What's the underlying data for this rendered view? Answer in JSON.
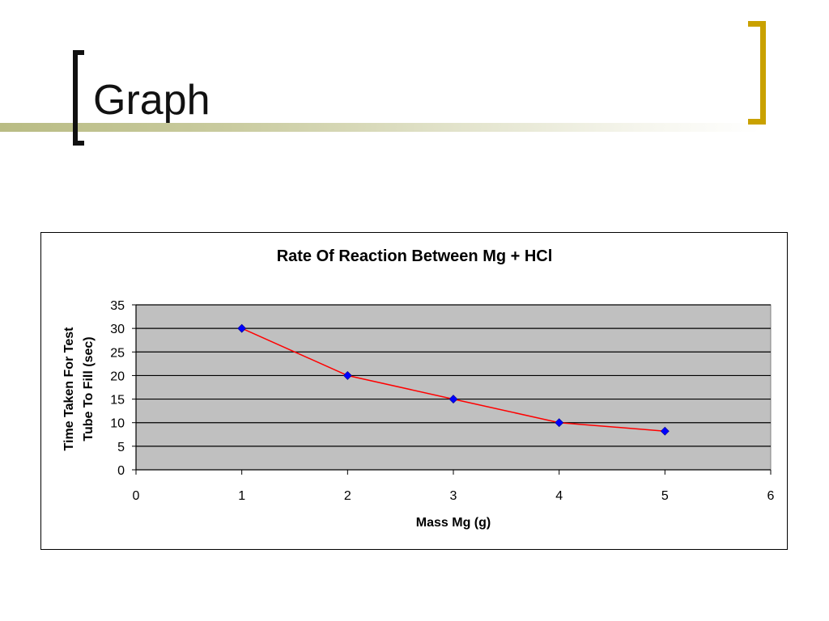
{
  "slide": {
    "title": "Graph",
    "accent_color": "#c9a100",
    "band_color": "#b9bc84"
  },
  "chart_data": {
    "type": "line",
    "title": "Rate Of Reaction Between Mg + HCl",
    "xlabel": "Mass Mg (g)",
    "ylabel_lines": [
      "Time Taken For Test",
      "Tube To Fill (sec)"
    ],
    "x": [
      1,
      2,
      3,
      4,
      5
    ],
    "series": [
      {
        "values": [
          30,
          20,
          15,
          10,
          8.2
        ],
        "line_color": "#ff0000",
        "marker_color": "#0000ff",
        "marker": "diamond"
      }
    ],
    "xlim": [
      0,
      6
    ],
    "ylim": [
      0,
      35
    ],
    "x_ticks": [
      0,
      1,
      2,
      3,
      4,
      5,
      6
    ],
    "y_ticks": [
      0,
      5,
      10,
      15,
      20,
      25,
      30,
      35
    ],
    "grid": "horizontal",
    "plot_background": "#c0c0c0",
    "legend": "none"
  }
}
